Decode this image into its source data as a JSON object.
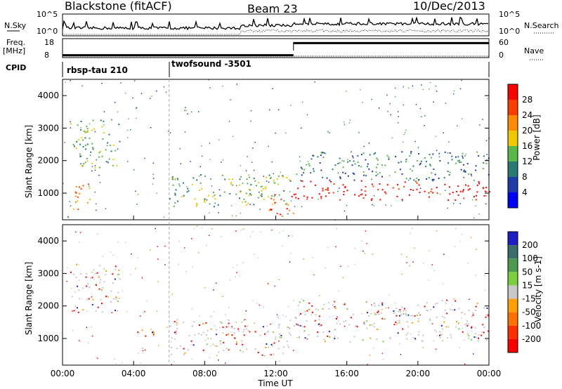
{
  "header": {
    "radar": "Blackstone (fitACF)",
    "beam": "Beam 23",
    "date": "10/Dec/2013"
  },
  "summary": {
    "nsky_label": "N.Sky",
    "nsky_ticks": [
      "10^5",
      "10^0"
    ],
    "nsearch_label": "N.Search",
    "freq_label_top": "Freq.",
    "freq_label_bottom": "[MHz]",
    "freq_ticks": [
      "18",
      "8"
    ],
    "nave_label": "Nave",
    "nave_ticks": [
      "60",
      "0"
    ],
    "cpid_label": "CPID",
    "cpid_segments": [
      {
        "name": "rbsp-tau 210",
        "start_hour": 0,
        "end_hour": 6
      },
      {
        "name": "twofsound -3501",
        "start_hour": 6,
        "end_hour": 24
      }
    ],
    "freq_segments": [
      {
        "start_hour": 0,
        "end_hour": 13,
        "level": 0.18
      },
      {
        "start_hour": 13,
        "end_hour": 24,
        "level": 0.82
      }
    ]
  },
  "chart_data": [
    {
      "type": "heatmap",
      "name": "power",
      "xlabel": "Time UT",
      "ylabel": "Slant Range [km]",
      "xlim": [
        0,
        24
      ],
      "ylim": [
        180,
        4500
      ],
      "x_ticks": [
        "00:00",
        "04:00",
        "08:00",
        "12:00",
        "16:00",
        "20:00",
        "00:00"
      ],
      "y_ticks": [
        1000,
        2000,
        3000,
        4000
      ],
      "colorbar": {
        "label": "Power [dB]",
        "ticks": [
          4,
          8,
          12,
          16,
          20,
          24,
          28
        ],
        "range": [
          0,
          32
        ],
        "colors": [
          "#0000ff",
          "#1e3ca8",
          "#2a7a74",
          "#58b84a",
          "#f0c800",
          "#ff8c00",
          "#ff3c00",
          "#ff0000"
        ]
      },
      "features": [
        {
          "region": "arc",
          "t": [
            0.4,
            3.2
          ],
          "range_km": [
            1800,
            3300
          ],
          "level_db": 10
        },
        {
          "region": "patch",
          "t": [
            0.2,
            1.5
          ],
          "range_km": [
            500,
            1300
          ],
          "level_db": 20
        },
        {
          "region": "band",
          "t": [
            6,
            12.8
          ],
          "range_km": [
            600,
            1600
          ],
          "level_db": 10
        },
        {
          "region": "band",
          "t": [
            11.5,
            13
          ],
          "range_km": [
            300,
            1000
          ],
          "level_db": 22
        },
        {
          "region": "band",
          "t": [
            13,
            24
          ],
          "range_km": [
            800,
            1400
          ],
          "level_db": 28
        },
        {
          "region": "band",
          "t": [
            13,
            24
          ],
          "range_km": [
            1400,
            2300
          ],
          "level_db": 8
        }
      ]
    },
    {
      "type": "heatmap",
      "name": "velocity",
      "xlabel": "Time UT",
      "ylabel": "Slant Range [km]",
      "xlim": [
        0,
        24
      ],
      "ylim": [
        180,
        4500
      ],
      "x_ticks": [
        "00:00",
        "04:00",
        "08:00",
        "12:00",
        "16:00",
        "20:00",
        "00:00"
      ],
      "y_ticks": [
        1000,
        2000,
        3000,
        4000
      ],
      "colorbar": {
        "label": "Velocity [m s-1]",
        "ticks": [
          200,
          100,
          50,
          15,
          -15,
          -50,
          -100,
          -200
        ],
        "colors": [
          "#1e1ec8",
          "#3a6c6c",
          "#4a9a50",
          "#7ad03c",
          "#c8c8c8",
          "#ffa000",
          "#ff7000",
          "#ff3000",
          "#ff0000"
        ]
      },
      "features": [
        {
          "region": "arc",
          "t": [
            0.4,
            3.2
          ],
          "range_km": [
            1800,
            3300
          ],
          "velocity": 0
        },
        {
          "region": "patch",
          "t": [
            4.2,
            5.2
          ],
          "range_km": [
            900,
            1300
          ],
          "velocity": -60
        },
        {
          "region": "band",
          "t": [
            6,
            12.8
          ],
          "range_km": [
            500,
            1600
          ],
          "velocity": 0
        },
        {
          "region": "band",
          "t": [
            13,
            24
          ],
          "range_km": [
            900,
            2200
          ],
          "velocity": 0
        }
      ]
    }
  ]
}
